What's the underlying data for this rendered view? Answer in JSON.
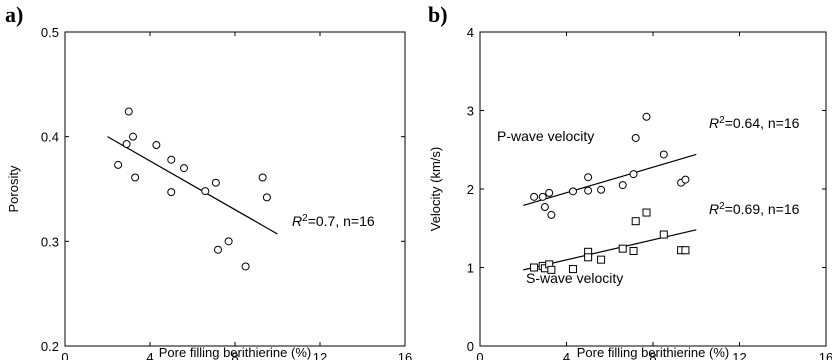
{
  "chart_data": [
    {
      "type": "scatter",
      "panel_label": "a)",
      "xlabel": "Pore filling berithierine (%)",
      "ylabel": "Porosity",
      "xlim": [
        0,
        16
      ],
      "ylim": [
        0.2,
        0.5
      ],
      "xticks": [
        "0",
        "4",
        "8",
        "12",
        "16"
      ],
      "yticks": [
        "0.2",
        "0.3",
        "0.4",
        "0.5"
      ],
      "annotation": {
        "r": "R",
        "exp": "2",
        "rest": "=0.7, n=16"
      },
      "series": [
        {
          "marker": "circle",
          "x": [
            2.5,
            2.9,
            3.0,
            3.2,
            3.3,
            4.3,
            5.0,
            5.0,
            5.6,
            6.6,
            7.1,
            7.2,
            7.7,
            8.5,
            9.3,
            9.5
          ],
          "y": [
            0.373,
            0.393,
            0.424,
            0.4,
            0.361,
            0.392,
            0.378,
            0.347,
            0.37,
            0.348,
            0.356,
            0.292,
            0.3,
            0.276,
            0.361,
            0.342
          ],
          "fit": {
            "x": [
              2.0,
              10.0
            ],
            "y": [
              0.4,
              0.307
            ]
          }
        }
      ]
    },
    {
      "type": "scatter",
      "panel_label": "b)",
      "xlabel": "Pore filling berithierine (%)",
      "ylabel": "Velocity (km/s)",
      "xlim": [
        0,
        16
      ],
      "ylim": [
        0,
        4
      ],
      "xticks": [
        "0",
        "4",
        "8",
        "12",
        "16"
      ],
      "yticks": [
        "0",
        "1",
        "2",
        "3",
        "4"
      ],
      "series": [
        {
          "name": "P-wave velocity",
          "marker": "circle",
          "x": [
            2.5,
            2.9,
            3.0,
            3.2,
            3.3,
            4.3,
            5.0,
            5.0,
            5.6,
            6.6,
            7.1,
            7.2,
            7.7,
            8.5,
            9.3,
            9.5
          ],
          "y": [
            1.9,
            1.9,
            1.77,
            1.95,
            1.67,
            1.97,
            2.15,
            1.98,
            1.99,
            2.05,
            2.19,
            2.65,
            2.92,
            2.44,
            2.08,
            2.12
          ],
          "fit": {
            "x": [
              2.0,
              10.0
            ],
            "y": [
              1.79,
              2.44
            ]
          },
          "annotation": {
            "r": "R",
            "exp": "2",
            "rest": "=0.64, n=16"
          }
        },
        {
          "name": "S-wave velocity",
          "marker": "square",
          "x": [
            2.5,
            2.9,
            3.0,
            3.2,
            3.3,
            4.3,
            5.0,
            5.0,
            5.6,
            6.6,
            7.1,
            7.2,
            7.7,
            8.5,
            9.3,
            9.5
          ],
          "y": [
            1.0,
            1.02,
            0.99,
            1.04,
            0.97,
            0.98,
            1.2,
            1.13,
            1.1,
            1.24,
            1.21,
            1.59,
            1.7,
            1.42,
            1.22,
            1.22
          ],
          "fit": {
            "x": [
              2.0,
              10.0
            ],
            "y": [
              0.97,
              1.48
            ]
          },
          "annotation": {
            "r": "R",
            "exp": "2",
            "rest": "=0.69, n=16"
          }
        }
      ]
    }
  ]
}
